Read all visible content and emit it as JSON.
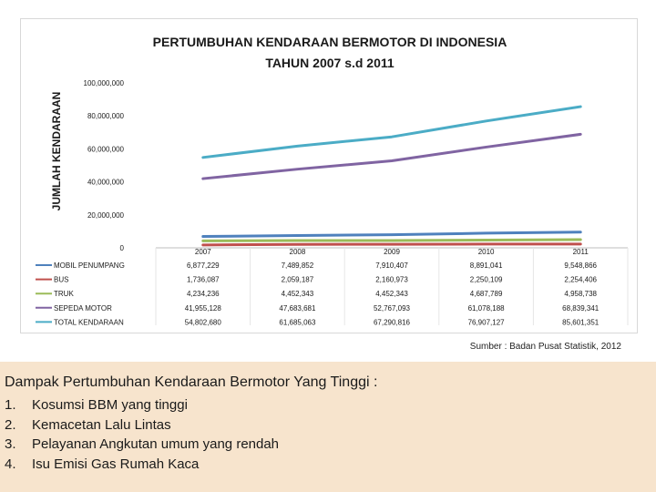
{
  "chart_data": {
    "type": "line",
    "title": "PERTUMBUHAN KENDARAAN BERMOTOR DI INDONESIA",
    "subtitle": "TAHUN 2007 s.d 2011",
    "ylabel": "JUMLAH KENDARAAN",
    "xlabel": "",
    "categories": [
      "2007",
      "2008",
      "2009",
      "2010",
      "2011"
    ],
    "ylim": [
      0,
      100000000
    ],
    "y_ticks": [
      "0",
      "20,000,000",
      "40,000,000",
      "60,000,000",
      "80,000,000",
      "100,000,000"
    ],
    "y_tick_values": [
      0,
      20000000,
      40000000,
      60000000,
      80000000,
      100000000
    ],
    "grid": false,
    "legend": "data-table-bottom",
    "series": [
      {
        "name": "MOBIL PENUMPANG",
        "color": "#4f81bd",
        "values": [
          6877229,
          7489852,
          7910407,
          8891041,
          9548866
        ],
        "labels": [
          "6,877,229",
          "7,489,852",
          "7,910,407",
          "8,891,041",
          "9,548,866"
        ]
      },
      {
        "name": "BUS",
        "color": "#c0504d",
        "values": [
          1736087,
          2059187,
          2160973,
          2250109,
          2254406
        ],
        "labels": [
          "1,736,087",
          "2,059,187",
          "2,160,973",
          "2,250,109",
          "2,254,406"
        ]
      },
      {
        "name": "TRUK",
        "color": "#9bbb59",
        "values": [
          4234236,
          4452343,
          4452343,
          4687789,
          4958738
        ],
        "labels": [
          "4,234,236",
          "4,452,343",
          "4,452,343",
          "4,687,789",
          "4,958,738"
        ]
      },
      {
        "name": "SEPEDA MOTOR",
        "color": "#8064a2",
        "values": [
          41955128,
          47683681,
          52767093,
          61078188,
          68839341
        ],
        "labels": [
          "41,955,128",
          "47,683,681",
          "52,767,093",
          "61,078,188",
          "68,839,341"
        ]
      },
      {
        "name": "TOTAL KENDARAAN",
        "color": "#4bacc6",
        "values": [
          54802680,
          61685063,
          67290816,
          76907127,
          85601351
        ],
        "labels": [
          "54,802,680",
          "61,685,063",
          "67,290,816",
          "76,907,127",
          "85,601,351"
        ]
      }
    ]
  },
  "source": "Sumber : Badan Pusat Statistik, 2012",
  "impact": {
    "title": "Dampak Pertumbuhan Kendaraan Bermotor Yang Tinggi :",
    "items": [
      {
        "num": "1.",
        "text": "Kosumsi BBM yang tinggi"
      },
      {
        "num": "2.",
        "text": "Kemacetan Lalu Lintas"
      },
      {
        "num": "3.",
        "text": "Pelayanan Angkutan umum yang rendah"
      },
      {
        "num": "4.",
        "text": "Isu  Emisi Gas Rumah Kaca"
      }
    ]
  }
}
